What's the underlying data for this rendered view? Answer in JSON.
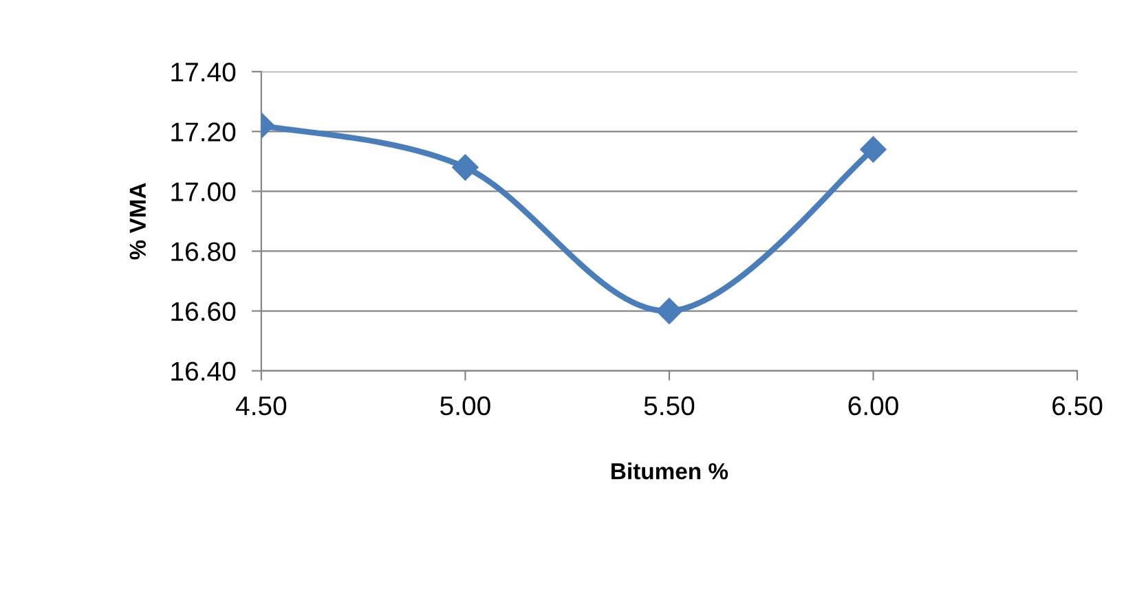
{
  "chart_data": {
    "type": "line",
    "xlabel": "Bitumen %",
    "ylabel": "% VMA",
    "x": [
      4.5,
      5.0,
      5.5,
      6.0
    ],
    "series": [
      {
        "color": "#4a7ebb",
        "values": [
          17.22,
          17.08,
          16.6,
          17.14
        ]
      }
    ],
    "xlim": [
      4.5,
      6.5
    ],
    "xticks": [
      {
        "value": 4.5,
        "label": "4.50"
      },
      {
        "value": 5.0,
        "label": "5.00"
      },
      {
        "value": 5.5,
        "label": "5.50"
      },
      {
        "value": 6.0,
        "label": "6.00"
      },
      {
        "value": 6.5,
        "label": "6.50"
      }
    ],
    "ylim": [
      16.4,
      17.4
    ],
    "yticks": [
      {
        "value": 16.4,
        "label": "16.40"
      },
      {
        "value": 16.6,
        "label": "16.60"
      },
      {
        "value": 16.8,
        "label": "16.80"
      },
      {
        "value": 17.0,
        "label": "17.00"
      },
      {
        "value": 17.2,
        "label": "17.20"
      },
      {
        "value": 17.4,
        "label": "17.40"
      }
    ],
    "grid": "y",
    "marker": "diamond",
    "line_style": "solid"
  }
}
